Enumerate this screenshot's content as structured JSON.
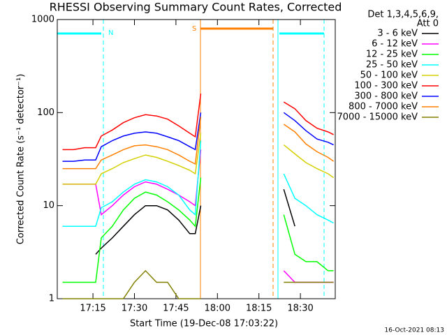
{
  "chart_data": {
    "type": "line",
    "title": "RHESSI Observing Summary Count Rates, Corrected",
    "xlabel": "Start Time (19-Dec-08 17:03:22)",
    "ylabel": "Corrected Count Rate (s⁻¹ detector⁻¹)",
    "legend_header": [
      "Det 1,3,4,5,6,9,",
      "Att 0"
    ],
    "annotations": [
      "N",
      "S"
    ],
    "footer": "16-Oct-2021 08:13",
    "log_y": true,
    "xlim": [
      2.1,
      102.6
    ],
    "ylim": [
      1,
      1000
    ],
    "yticks": [
      1,
      10,
      100,
      1000
    ],
    "xticks": [
      {
        "value": 15,
        "label": "17:15"
      },
      {
        "value": 30,
        "label": "17:30"
      },
      {
        "value": 45,
        "label": "17:45"
      },
      {
        "value": 60,
        "label": "18:00"
      },
      {
        "value": 75,
        "label": "18:15"
      },
      {
        "value": 90,
        "label": "18:30"
      }
    ],
    "x": [
      4,
      8,
      12,
      16,
      18,
      22,
      26,
      30,
      34,
      38,
      42,
      46,
      50,
      52,
      54,
      60,
      84,
      88,
      92,
      96,
      100,
      102
    ],
    "series": [
      {
        "name": "3 - 6 keV",
        "color": "#000000",
        "values": [
          null,
          null,
          null,
          3,
          3.5,
          4.5,
          6,
          8,
          10,
          10,
          9,
          7,
          5,
          5,
          10,
          null,
          15,
          6,
          null,
          null,
          null,
          null
        ]
      },
      {
        "name": "6 - 12 keV",
        "color": "#ff00ff",
        "values": [
          17,
          17,
          17,
          17,
          8,
          10,
          13,
          16,
          18,
          17,
          15,
          13,
          11,
          10,
          40,
          null,
          2,
          1.5,
          1.5,
          1.5,
          1.5,
          1.5
        ]
      },
      {
        "name": "12 - 25 keV",
        "color": "#00ff00",
        "values": [
          1.5,
          1.5,
          1.5,
          1.5,
          4.5,
          6,
          9,
          12,
          14,
          13,
          11,
          9,
          7,
          6,
          20,
          null,
          8,
          3,
          2.5,
          2.5,
          2,
          2
        ]
      },
      {
        "name": "25 - 50 keV",
        "color": "#00ffff",
        "values": [
          6,
          6,
          6,
          6,
          9.5,
          11,
          14,
          17,
          19,
          18,
          16,
          13,
          9,
          8,
          50,
          null,
          22,
          12,
          10,
          8,
          7,
          6.5
        ]
      },
      {
        "name": "50 - 100 keV",
        "color": "#d4d000",
        "values": [
          17,
          17,
          17,
          17,
          22,
          25,
          29,
          32,
          35,
          33,
          30,
          27,
          24,
          22,
          60,
          null,
          45,
          36,
          29,
          25,
          22,
          20
        ]
      },
      {
        "name": "100 - 300 keV",
        "color": "#ff0000",
        "values": [
          40,
          40,
          42,
          42,
          56,
          65,
          78,
          88,
          95,
          92,
          85,
          72,
          60,
          55,
          160,
          null,
          130,
          110,
          82,
          68,
          62,
          58
        ]
      },
      {
        "name": "300 - 800 keV",
        "color": "#0000ff",
        "values": [
          30,
          30,
          31,
          31,
          43,
          50,
          56,
          60,
          62,
          60,
          55,
          50,
          43,
          40,
          100,
          null,
          100,
          82,
          64,
          52,
          48,
          45
        ]
      },
      {
        "name": "800 - 7000 keV",
        "color": "#ff8000",
        "values": [
          25,
          25,
          25,
          25,
          31,
          35,
          40,
          44,
          45,
          43,
          40,
          35,
          30,
          28,
          90,
          null,
          75,
          62,
          46,
          38,
          33,
          30
        ]
      },
      {
        "name": "7000 - 15000 keV",
        "color": "#808000",
        "values": [
          1,
          1,
          1,
          1,
          1,
          1,
          1,
          1.5,
          2,
          1.5,
          1.5,
          1,
          1,
          1,
          1,
          null,
          1.5,
          1.5,
          1.5,
          1.5,
          1.5,
          1.5
        ]
      }
    ]
  }
}
